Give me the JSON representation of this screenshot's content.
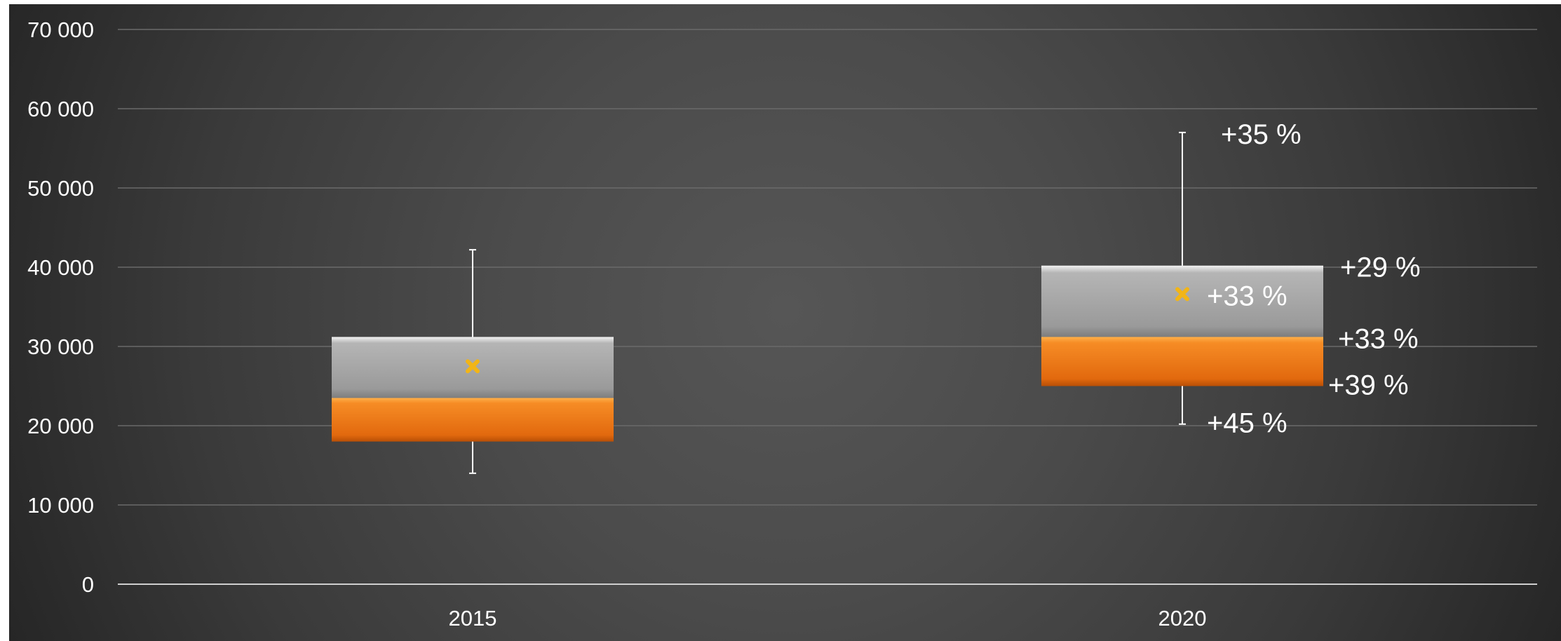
{
  "chart_data": {
    "type": "box",
    "y_ticks": [
      "0",
      "10 000",
      "20 000",
      "30 000",
      "40 000",
      "50 000",
      "60 000",
      "70 000"
    ],
    "ylim": [
      0,
      70000
    ],
    "grid": true,
    "legend": "none",
    "colors": {
      "lower_box": "#f07c18",
      "upper_box": "#a8a8a8",
      "mean_marker": "#f2b517",
      "whisker": "#ffffff",
      "grid": "#6a6a6a"
    },
    "categories": [
      "2015",
      "2020"
    ],
    "boxes": [
      {
        "category": "2015",
        "min": 14000,
        "q1": 18000,
        "median": 23500,
        "q3": 31200,
        "max": 42200,
        "mean": 27500,
        "annotations": []
      },
      {
        "category": "2020",
        "min": 20200,
        "q1": 25000,
        "median": 31200,
        "q3": 40200,
        "max": 57000,
        "mean": 36600,
        "annotations": [
          {
            "stat": "max",
            "text": "+35 %"
          },
          {
            "stat": "q3",
            "text": "+29 %"
          },
          {
            "stat": "mean",
            "text": "+33 %"
          },
          {
            "stat": "median",
            "text": "+33 %"
          },
          {
            "stat": "q1",
            "text": "+39 %"
          },
          {
            "stat": "min",
            "text": "+45 %"
          }
        ]
      }
    ]
  }
}
